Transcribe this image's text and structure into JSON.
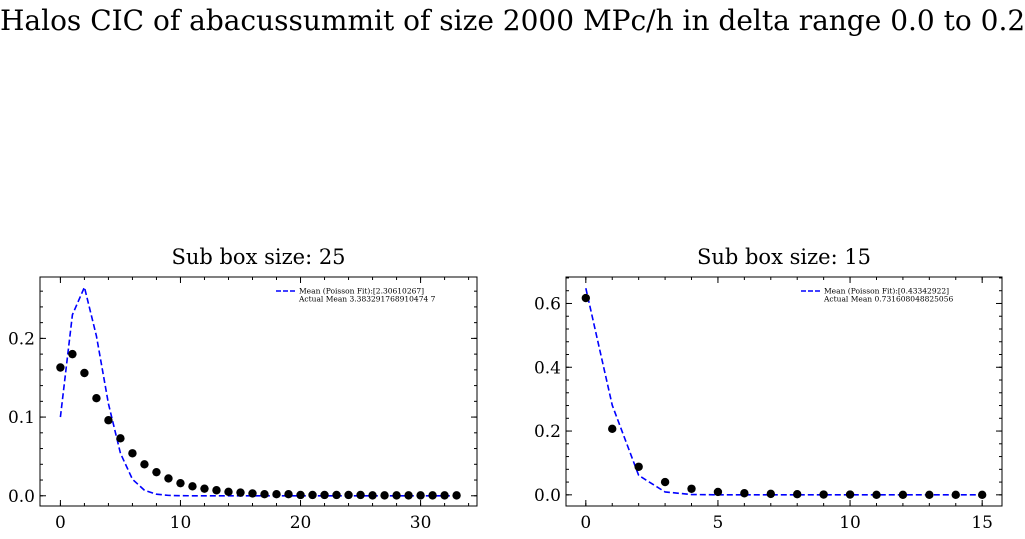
{
  "suptitle": "Halos CIC of abacussummit of size 2000 MPc/h in delta range 0.0 to 0.2",
  "colors": {
    "fit_line": "#0000ff",
    "points": "#000000"
  },
  "chart_data": [
    {
      "type": "line",
      "title": "Sub box size: 25",
      "xlabel": "",
      "ylabel": "",
      "xlim": [
        -1.7,
        34.7
      ],
      "ylim": [
        -0.013,
        0.278
      ],
      "xticks": [
        0,
        10,
        20,
        30
      ],
      "yticks": [
        0.0,
        0.1,
        0.2
      ],
      "ytick_labels": [
        "0.0",
        "0.1",
        "0.2"
      ],
      "legend": {
        "placement": "top-right",
        "entries": [
          "Mean (Poisson Fit):[2.30610267]",
          "Actual Mean 3.383291768910474 7"
        ]
      },
      "series": [
        {
          "name": "Mean (Poisson Fit):[2.30610267]",
          "style": "dashed",
          "color": "#0000ff",
          "x": [
            0,
            1,
            2,
            3,
            4,
            5,
            6,
            7,
            8,
            9,
            10,
            11,
            12,
            13,
            14,
            15,
            16,
            17,
            18,
            19,
            20,
            21,
            22,
            23,
            24,
            25,
            26,
            27,
            28,
            29,
            30,
            31,
            32,
            33
          ],
          "values": [
            0.1,
            0.23,
            0.265,
            0.203,
            0.117,
            0.054,
            0.021,
            0.007,
            0.002,
            0.0005,
            0.0001,
            0,
            0,
            0,
            0,
            0,
            0,
            0,
            0,
            0,
            0,
            0,
            0,
            0,
            0,
            0,
            0,
            0,
            0,
            0,
            0,
            0,
            0,
            0
          ]
        },
        {
          "name": "Actual Mean 3.383291768910474 7",
          "style": "scatter",
          "color": "#000000",
          "x": [
            0,
            1,
            2,
            3,
            4,
            5,
            6,
            7,
            8,
            9,
            10,
            11,
            12,
            13,
            14,
            15,
            16,
            17,
            18,
            19,
            20,
            21,
            22,
            23,
            24,
            25,
            26,
            27,
            28,
            29,
            30,
            31,
            32,
            33
          ],
          "values": [
            0.163,
            0.18,
            0.156,
            0.124,
            0.096,
            0.073,
            0.054,
            0.04,
            0.03,
            0.022,
            0.016,
            0.012,
            0.009,
            0.007,
            0.005,
            0.004,
            0.003,
            0.002,
            0.002,
            0.002,
            0.001,
            0.001,
            0.001,
            0.001,
            0.001,
            0.001,
            0.0005,
            0.0005,
            0.0005,
            0.0005,
            0.0005,
            0.0005,
            0.0005,
            0.0005
          ]
        }
      ]
    },
    {
      "type": "line",
      "title": "Sub box size: 15",
      "xlabel": "",
      "ylabel": "",
      "xlim": [
        -0.75,
        15.75
      ],
      "ylim": [
        -0.035,
        0.683
      ],
      "xticks": [
        0,
        5,
        10,
        15
      ],
      "yticks": [
        0.0,
        0.2,
        0.4,
        0.6
      ],
      "ytick_labels": [
        "0.0",
        "0.2",
        "0.4",
        "0.6"
      ],
      "legend": {
        "placement": "top-right",
        "entries": [
          "Mean (Poisson Fit):[0.43342922]",
          "Actual Mean 0.731608048825056"
        ]
      },
      "series": [
        {
          "name": "Mean (Poisson Fit):[0.43342922]",
          "style": "dashed",
          "color": "#0000ff",
          "x": [
            0,
            1,
            2,
            3,
            4,
            5,
            6,
            7,
            8,
            9,
            10,
            11,
            12,
            13,
            14,
            15
          ],
          "values": [
            0.648,
            0.281,
            0.061,
            0.009,
            0.001,
            0,
            0,
            0,
            0,
            0,
            0,
            0,
            0,
            0,
            0,
            0
          ]
        },
        {
          "name": "Actual Mean 0.731608048825056",
          "style": "scatter",
          "color": "#000000",
          "x": [
            0,
            1,
            2,
            3,
            4,
            5,
            6,
            7,
            8,
            9,
            10,
            11,
            12,
            13,
            14,
            15
          ],
          "values": [
            0.617,
            0.207,
            0.088,
            0.04,
            0.019,
            0.009,
            0.005,
            0.003,
            0.002,
            0.001,
            0.001,
            0,
            0,
            0,
            0,
            0
          ]
        }
      ]
    }
  ]
}
